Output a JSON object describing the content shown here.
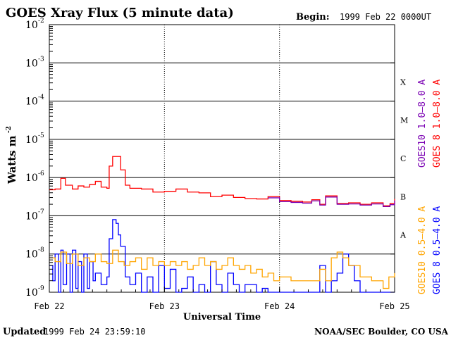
{
  "chart_data": {
    "type": "line",
    "title": "GOES Xray Flux (5 minute data)",
    "begin_label": "Begin:",
    "begin_value": "1999 Feb 22 0000UT",
    "xlabel": "Universal Time",
    "ylabel": "Watts m",
    "ylabel_sup": "-2",
    "y_scale": "log",
    "ylim": [
      1e-09,
      0.01
    ],
    "xlim_days": [
      0,
      3
    ],
    "x_ticks": [
      {
        "day": 0,
        "label": "Feb 22"
      },
      {
        "day": 1,
        "label": "Feb 23"
      },
      {
        "day": 2,
        "label": "Feb 24"
      },
      {
        "day": 3,
        "label": "Feb 25"
      }
    ],
    "y_ticks": [
      {
        "exp": -2,
        "base": "10",
        "sup": "-2"
      },
      {
        "exp": -3,
        "base": "10",
        "sup": "-3"
      },
      {
        "exp": -4,
        "base": "10",
        "sup": "-4"
      },
      {
        "exp": -5,
        "base": "10",
        "sup": "-5"
      },
      {
        "exp": -6,
        "base": "10",
        "sup": "-6"
      },
      {
        "exp": -7,
        "base": "10",
        "sup": "-7"
      },
      {
        "exp": -8,
        "base": "10",
        "sup": "-8"
      },
      {
        "exp": -9,
        "base": "10",
        "sup": "-9"
      }
    ],
    "flare_classes": [
      {
        "label": "X",
        "exp": -3.5
      },
      {
        "label": "M",
        "exp": -4.5
      },
      {
        "label": "C",
        "exp": -5.5
      },
      {
        "label": "B",
        "exp": -6.5
      },
      {
        "label": "A",
        "exp": -7.5
      }
    ],
    "grid": true,
    "series": [
      {
        "name": "GOES 8 1.0-8.0 A",
        "color": "#ff0000",
        "points": [
          [
            0.0,
            -6.32
          ],
          [
            0.05,
            -6.3
          ],
          [
            0.1,
            -6.02
          ],
          [
            0.14,
            -6.2
          ],
          [
            0.2,
            -6.3
          ],
          [
            0.25,
            -6.22
          ],
          [
            0.3,
            -6.25
          ],
          [
            0.35,
            -6.18
          ],
          [
            0.4,
            -6.1
          ],
          [
            0.45,
            -6.25
          ],
          [
            0.5,
            -6.28
          ],
          [
            0.52,
            -5.7
          ],
          [
            0.55,
            -5.45
          ],
          [
            0.58,
            -5.45
          ],
          [
            0.62,
            -5.8
          ],
          [
            0.66,
            -6.2
          ],
          [
            0.7,
            -6.28
          ],
          [
            0.8,
            -6.3
          ],
          [
            0.9,
            -6.38
          ],
          [
            1.0,
            -6.36
          ],
          [
            1.1,
            -6.3
          ],
          [
            1.2,
            -6.38
          ],
          [
            1.3,
            -6.4
          ],
          [
            1.4,
            -6.5
          ],
          [
            1.5,
            -6.46
          ],
          [
            1.6,
            -6.52
          ],
          [
            1.7,
            -6.55
          ],
          [
            1.8,
            -6.56
          ],
          [
            1.9,
            -6.5
          ],
          [
            2.0,
            -6.6
          ],
          [
            2.1,
            -6.62
          ],
          [
            2.2,
            -6.64
          ],
          [
            2.28,
            -6.58
          ],
          [
            2.35,
            -6.7
          ],
          [
            2.4,
            -6.48
          ],
          [
            2.5,
            -6.68
          ],
          [
            2.6,
            -6.66
          ],
          [
            2.7,
            -6.7
          ],
          [
            2.8,
            -6.66
          ],
          [
            2.9,
            -6.74
          ],
          [
            2.96,
            -6.68
          ],
          [
            3.0,
            -6.56
          ]
        ]
      },
      {
        "name": "GOES10 1.0-8.0 A",
        "color": "#7a00b3",
        "points": [
          [
            1.9,
            -6.53
          ],
          [
            2.0,
            -6.63
          ],
          [
            2.1,
            -6.65
          ],
          [
            2.2,
            -6.67
          ],
          [
            2.28,
            -6.61
          ],
          [
            2.35,
            -6.72
          ],
          [
            2.4,
            -6.51
          ],
          [
            2.5,
            -6.7
          ],
          [
            2.6,
            -6.69
          ],
          [
            2.7,
            -6.72
          ],
          [
            2.8,
            -6.69
          ],
          [
            2.9,
            -6.76
          ],
          [
            2.96,
            -6.71
          ],
          [
            3.0,
            -6.6
          ]
        ]
      },
      {
        "name": "GOES 8 0.5-4.0 A",
        "color": "#0000ff",
        "points": [
          [
            0.0,
            -8.3
          ],
          [
            0.03,
            -8.7
          ],
          [
            0.05,
            -8.0
          ],
          [
            0.08,
            -9.0
          ],
          [
            0.1,
            -7.9
          ],
          [
            0.12,
            -8.8
          ],
          [
            0.15,
            -8.0
          ],
          [
            0.18,
            -9.0
          ],
          [
            0.2,
            -7.9
          ],
          [
            0.23,
            -8.9
          ],
          [
            0.25,
            -8.2
          ],
          [
            0.28,
            -9.0
          ],
          [
            0.3,
            -8.0
          ],
          [
            0.33,
            -8.9
          ],
          [
            0.35,
            -8.2
          ],
          [
            0.38,
            -8.7
          ],
          [
            0.4,
            -8.5
          ],
          [
            0.45,
            -8.8
          ],
          [
            0.5,
            -8.6
          ],
          [
            0.52,
            -7.6
          ],
          [
            0.55,
            -7.1
          ],
          [
            0.58,
            -7.2
          ],
          [
            0.6,
            -7.5
          ],
          [
            0.62,
            -7.8
          ],
          [
            0.66,
            -8.6
          ],
          [
            0.7,
            -8.8
          ],
          [
            0.75,
            -8.5
          ],
          [
            0.8,
            -9.0
          ],
          [
            0.85,
            -8.6
          ],
          [
            0.9,
            -9.0
          ],
          [
            0.95,
            -8.3
          ],
          [
            1.0,
            -8.9
          ],
          [
            1.05,
            -8.4
          ],
          [
            1.1,
            -9.0
          ],
          [
            1.15,
            -8.9
          ],
          [
            1.2,
            -8.6
          ],
          [
            1.25,
            -9.0
          ],
          [
            1.3,
            -8.8
          ],
          [
            1.35,
            -9.0
          ],
          [
            1.4,
            -8.2
          ],
          [
            1.45,
            -8.8
          ],
          [
            1.5,
            -9.0
          ],
          [
            1.55,
            -8.5
          ],
          [
            1.6,
            -8.8
          ],
          [
            1.65,
            -9.0
          ],
          [
            1.7,
            -8.8
          ],
          [
            1.8,
            -9.0
          ],
          [
            1.85,
            -8.9
          ],
          [
            1.9,
            -9.0
          ],
          [
            2.0,
            -9.0
          ],
          [
            2.1,
            -9.0
          ],
          [
            2.2,
            -9.0
          ],
          [
            2.3,
            -9.0
          ],
          [
            2.35,
            -8.3
          ],
          [
            2.4,
            -9.0
          ],
          [
            2.45,
            -8.7
          ],
          [
            2.5,
            -8.5
          ],
          [
            2.55,
            -8.0
          ],
          [
            2.6,
            -8.3
          ],
          [
            2.65,
            -8.7
          ],
          [
            2.7,
            -9.0
          ],
          [
            2.8,
            -9.0
          ],
          [
            2.9,
            -9.0
          ],
          [
            3.0,
            -9.0
          ]
        ]
      },
      {
        "name": "GOES10 0.5-4.0 A",
        "color": "#ffa500",
        "points": [
          [
            0.0,
            -8.1
          ],
          [
            0.05,
            -8.2
          ],
          [
            0.1,
            -7.95
          ],
          [
            0.15,
            -8.25
          ],
          [
            0.2,
            -8.0
          ],
          [
            0.25,
            -8.3
          ],
          [
            0.3,
            -8.1
          ],
          [
            0.35,
            -8.2
          ],
          [
            0.4,
            -8.0
          ],
          [
            0.45,
            -8.2
          ],
          [
            0.5,
            -8.25
          ],
          [
            0.55,
            -7.9
          ],
          [
            0.6,
            -8.2
          ],
          [
            0.65,
            -8.3
          ],
          [
            0.7,
            -8.2
          ],
          [
            0.75,
            -8.1
          ],
          [
            0.8,
            -8.4
          ],
          [
            0.85,
            -8.1
          ],
          [
            0.9,
            -8.3
          ],
          [
            0.95,
            -8.2
          ],
          [
            1.0,
            -8.3
          ],
          [
            1.05,
            -8.2
          ],
          [
            1.1,
            -8.3
          ],
          [
            1.15,
            -8.2
          ],
          [
            1.2,
            -8.4
          ],
          [
            1.25,
            -8.3
          ],
          [
            1.3,
            -8.1
          ],
          [
            1.35,
            -8.3
          ],
          [
            1.4,
            -8.2
          ],
          [
            1.45,
            -8.4
          ],
          [
            1.5,
            -8.3
          ],
          [
            1.55,
            -8.1
          ],
          [
            1.6,
            -8.3
          ],
          [
            1.65,
            -8.4
          ],
          [
            1.7,
            -8.3
          ],
          [
            1.75,
            -8.5
          ],
          [
            1.8,
            -8.4
          ],
          [
            1.85,
            -8.6
          ],
          [
            1.9,
            -8.5
          ],
          [
            1.95,
            -8.7
          ],
          [
            2.0,
            -8.6
          ],
          [
            2.1,
            -8.7
          ],
          [
            2.2,
            -8.7
          ],
          [
            2.3,
            -8.7
          ],
          [
            2.35,
            -8.4
          ],
          [
            2.4,
            -8.7
          ],
          [
            2.45,
            -8.1
          ],
          [
            2.5,
            -7.95
          ],
          [
            2.55,
            -8.1
          ],
          [
            2.6,
            -8.3
          ],
          [
            2.7,
            -8.6
          ],
          [
            2.8,
            -8.7
          ],
          [
            2.9,
            -8.9
          ],
          [
            2.95,
            -8.6
          ],
          [
            3.0,
            -8.5
          ]
        ]
      }
    ]
  },
  "legend": {
    "right_outer": [
      {
        "label": "GOES 8 1.0–8.0 A",
        "color": "#ff0000"
      },
      {
        "label": "GOES 8 0.5–4.0 A",
        "color": "#0000ff"
      }
    ],
    "right_inner": [
      {
        "label": "GOES10 1.0–8.0 A",
        "color": "#7a00b3"
      },
      {
        "label": "GOES10 0.5–4.0 A",
        "color": "#ffa500"
      }
    ]
  },
  "footer": {
    "updated_word": "Updated",
    "updated_value": "1999 Feb 24 23:59:10",
    "credit": "NOAA/SEC Boulder, CO USA"
  }
}
